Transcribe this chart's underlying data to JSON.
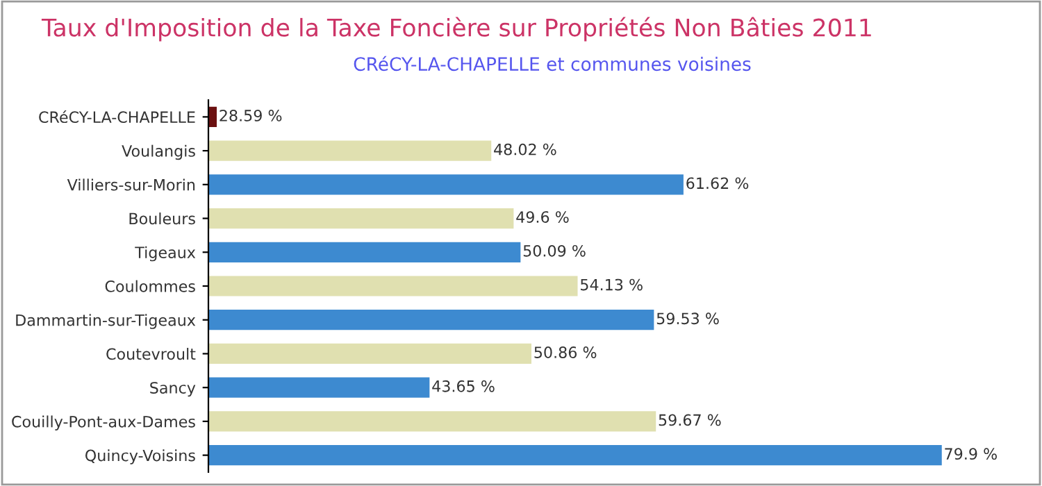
{
  "chart_data": {
    "type": "bar",
    "orientation": "horizontal",
    "title": "Taux d'Imposition de la Taxe Foncière sur Propriétés Non Bâties 2011",
    "subtitle": "CRéCY-LA-CHAPELLE et communes voisines",
    "categories": [
      "CRéCY-LA-CHAPELLE",
      "Voulangis",
      "Villiers-sur-Morin",
      "Bouleurs",
      "Tigeaux",
      "Coulommes",
      "Dammartin-sur-Tigeaux",
      "Coutevroult",
      "Sancy",
      "Couilly-Pont-aux-Dames",
      "Quincy-Voisins"
    ],
    "values": [
      28.59,
      48.02,
      61.62,
      49.6,
      50.09,
      54.13,
      59.53,
      50.86,
      43.65,
      59.67,
      79.9
    ],
    "value_labels": [
      "28.59 %",
      "48.02 %",
      "61.62 %",
      "49.6 %",
      "50.09 %",
      "54.13 %",
      "59.53 %",
      "50.86 %",
      "43.65 %",
      "59.67 %",
      "79.9 %"
    ],
    "colors": [
      "#6b1010",
      "#e0e0b0",
      "#3d8ad0",
      "#e0e0b0",
      "#3d8ad0",
      "#e0e0b0",
      "#3d8ad0",
      "#e0e0b0",
      "#3d8ad0",
      "#e0e0b0",
      "#3d8ad0"
    ],
    "xlim": [
      28,
      86.5
    ],
    "tick_labels": "y",
    "grid": false,
    "legend": false
  }
}
